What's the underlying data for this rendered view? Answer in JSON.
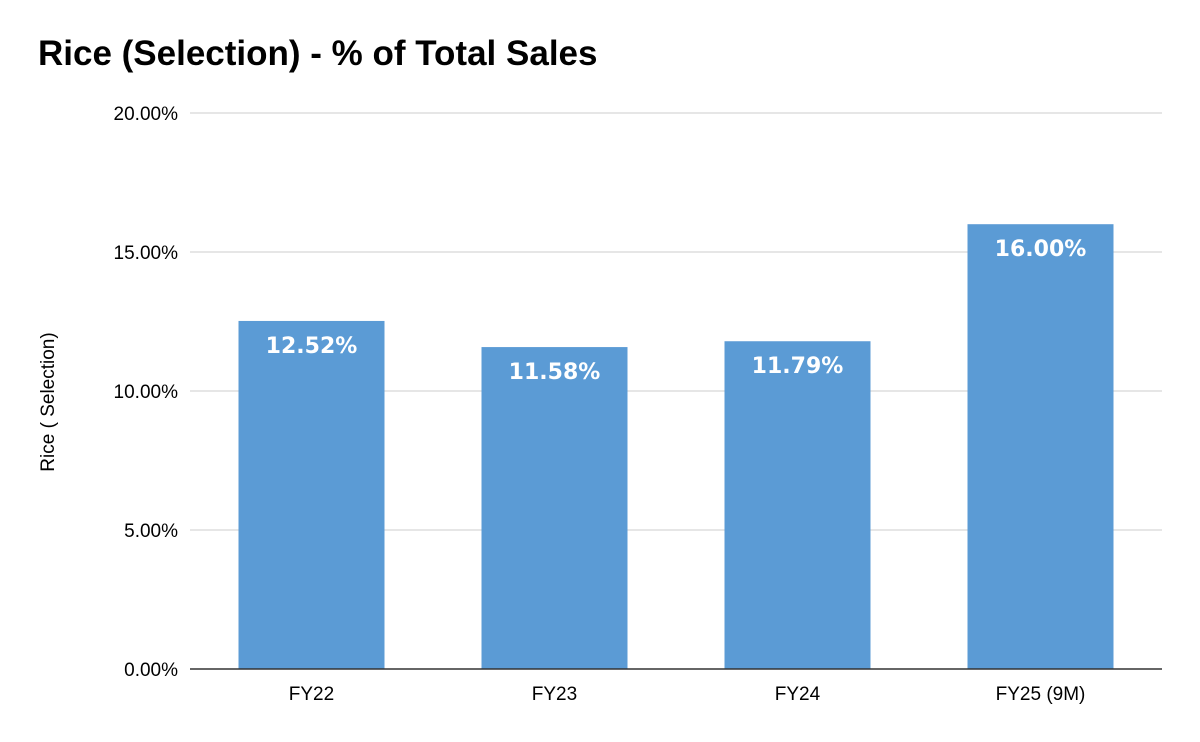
{
  "chart_data": {
    "type": "bar",
    "title": "Rice (Selection) - % of Total Sales",
    "xlabel": "",
    "ylabel": "Rice ( Selection)",
    "categories": [
      "FY22",
      "FY23",
      "FY24",
      "FY25 (9M)"
    ],
    "values": [
      12.52,
      11.58,
      11.79,
      16.0
    ],
    "data_labels": [
      "12.52%",
      "11.58%",
      "11.79%",
      "16.00%"
    ],
    "ylim": [
      0,
      20
    ],
    "yticks": [
      0,
      5,
      10,
      15,
      20
    ],
    "ytick_labels": [
      "0.00%",
      "5.00%",
      "10.00%",
      "15.00%",
      "20.00%"
    ],
    "grid": true,
    "legend": "none",
    "bar_color": "#5b9bd5",
    "gridline_color": "#cccccc",
    "axis_color": "#333333"
  }
}
